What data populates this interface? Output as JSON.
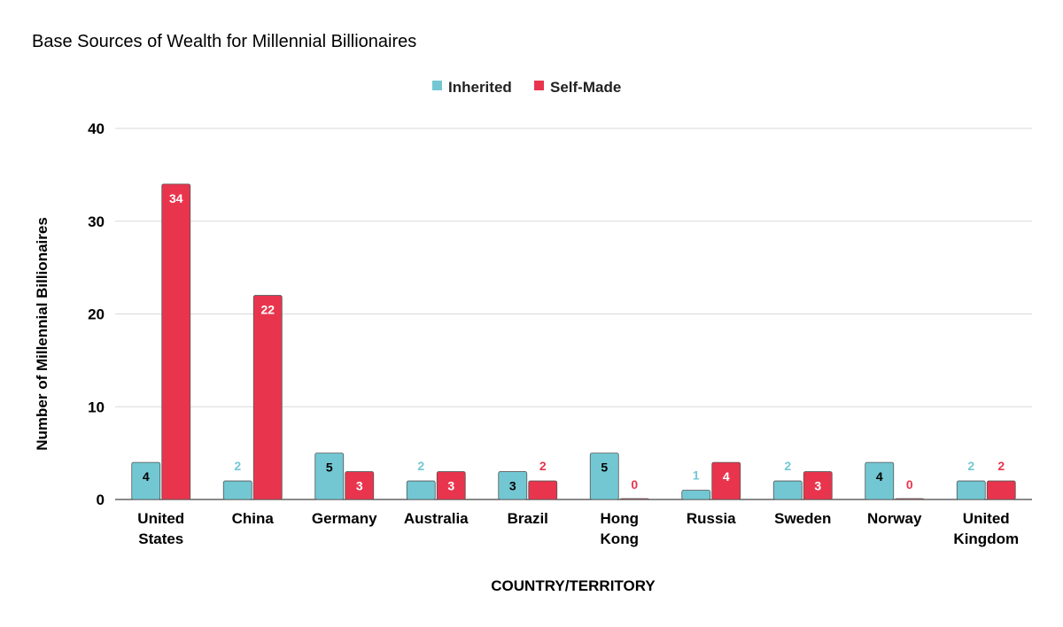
{
  "chart_data": {
    "type": "bar",
    "title": "Base Sources of Wealth for Millennial Billionaires",
    "xlabel": "COUNTRY/TERRITORY",
    "ylabel": "Number of Millennial Billionaires",
    "ylim": [
      0,
      40
    ],
    "yticks": [
      0,
      10,
      20,
      30,
      40
    ],
    "grid": true,
    "legend_position": "top-center",
    "categories": [
      [
        "United",
        "States"
      ],
      [
        "China"
      ],
      [
        "Germany"
      ],
      [
        "Australia"
      ],
      [
        "Brazil"
      ],
      [
        "Hong",
        "Kong"
      ],
      [
        "Russia"
      ],
      [
        "Sweden"
      ],
      [
        "Norway"
      ],
      [
        "United",
        "Kingdom"
      ]
    ],
    "series": [
      {
        "name": "Inherited",
        "color": "#72c7d3",
        "values": [
          4,
          2,
          5,
          2,
          3,
          5,
          1,
          2,
          4,
          2
        ]
      },
      {
        "name": "Self-Made",
        "color": "#e8354d",
        "values": [
          34,
          22,
          3,
          3,
          2,
          0,
          4,
          3,
          0,
          2
        ]
      }
    ]
  }
}
